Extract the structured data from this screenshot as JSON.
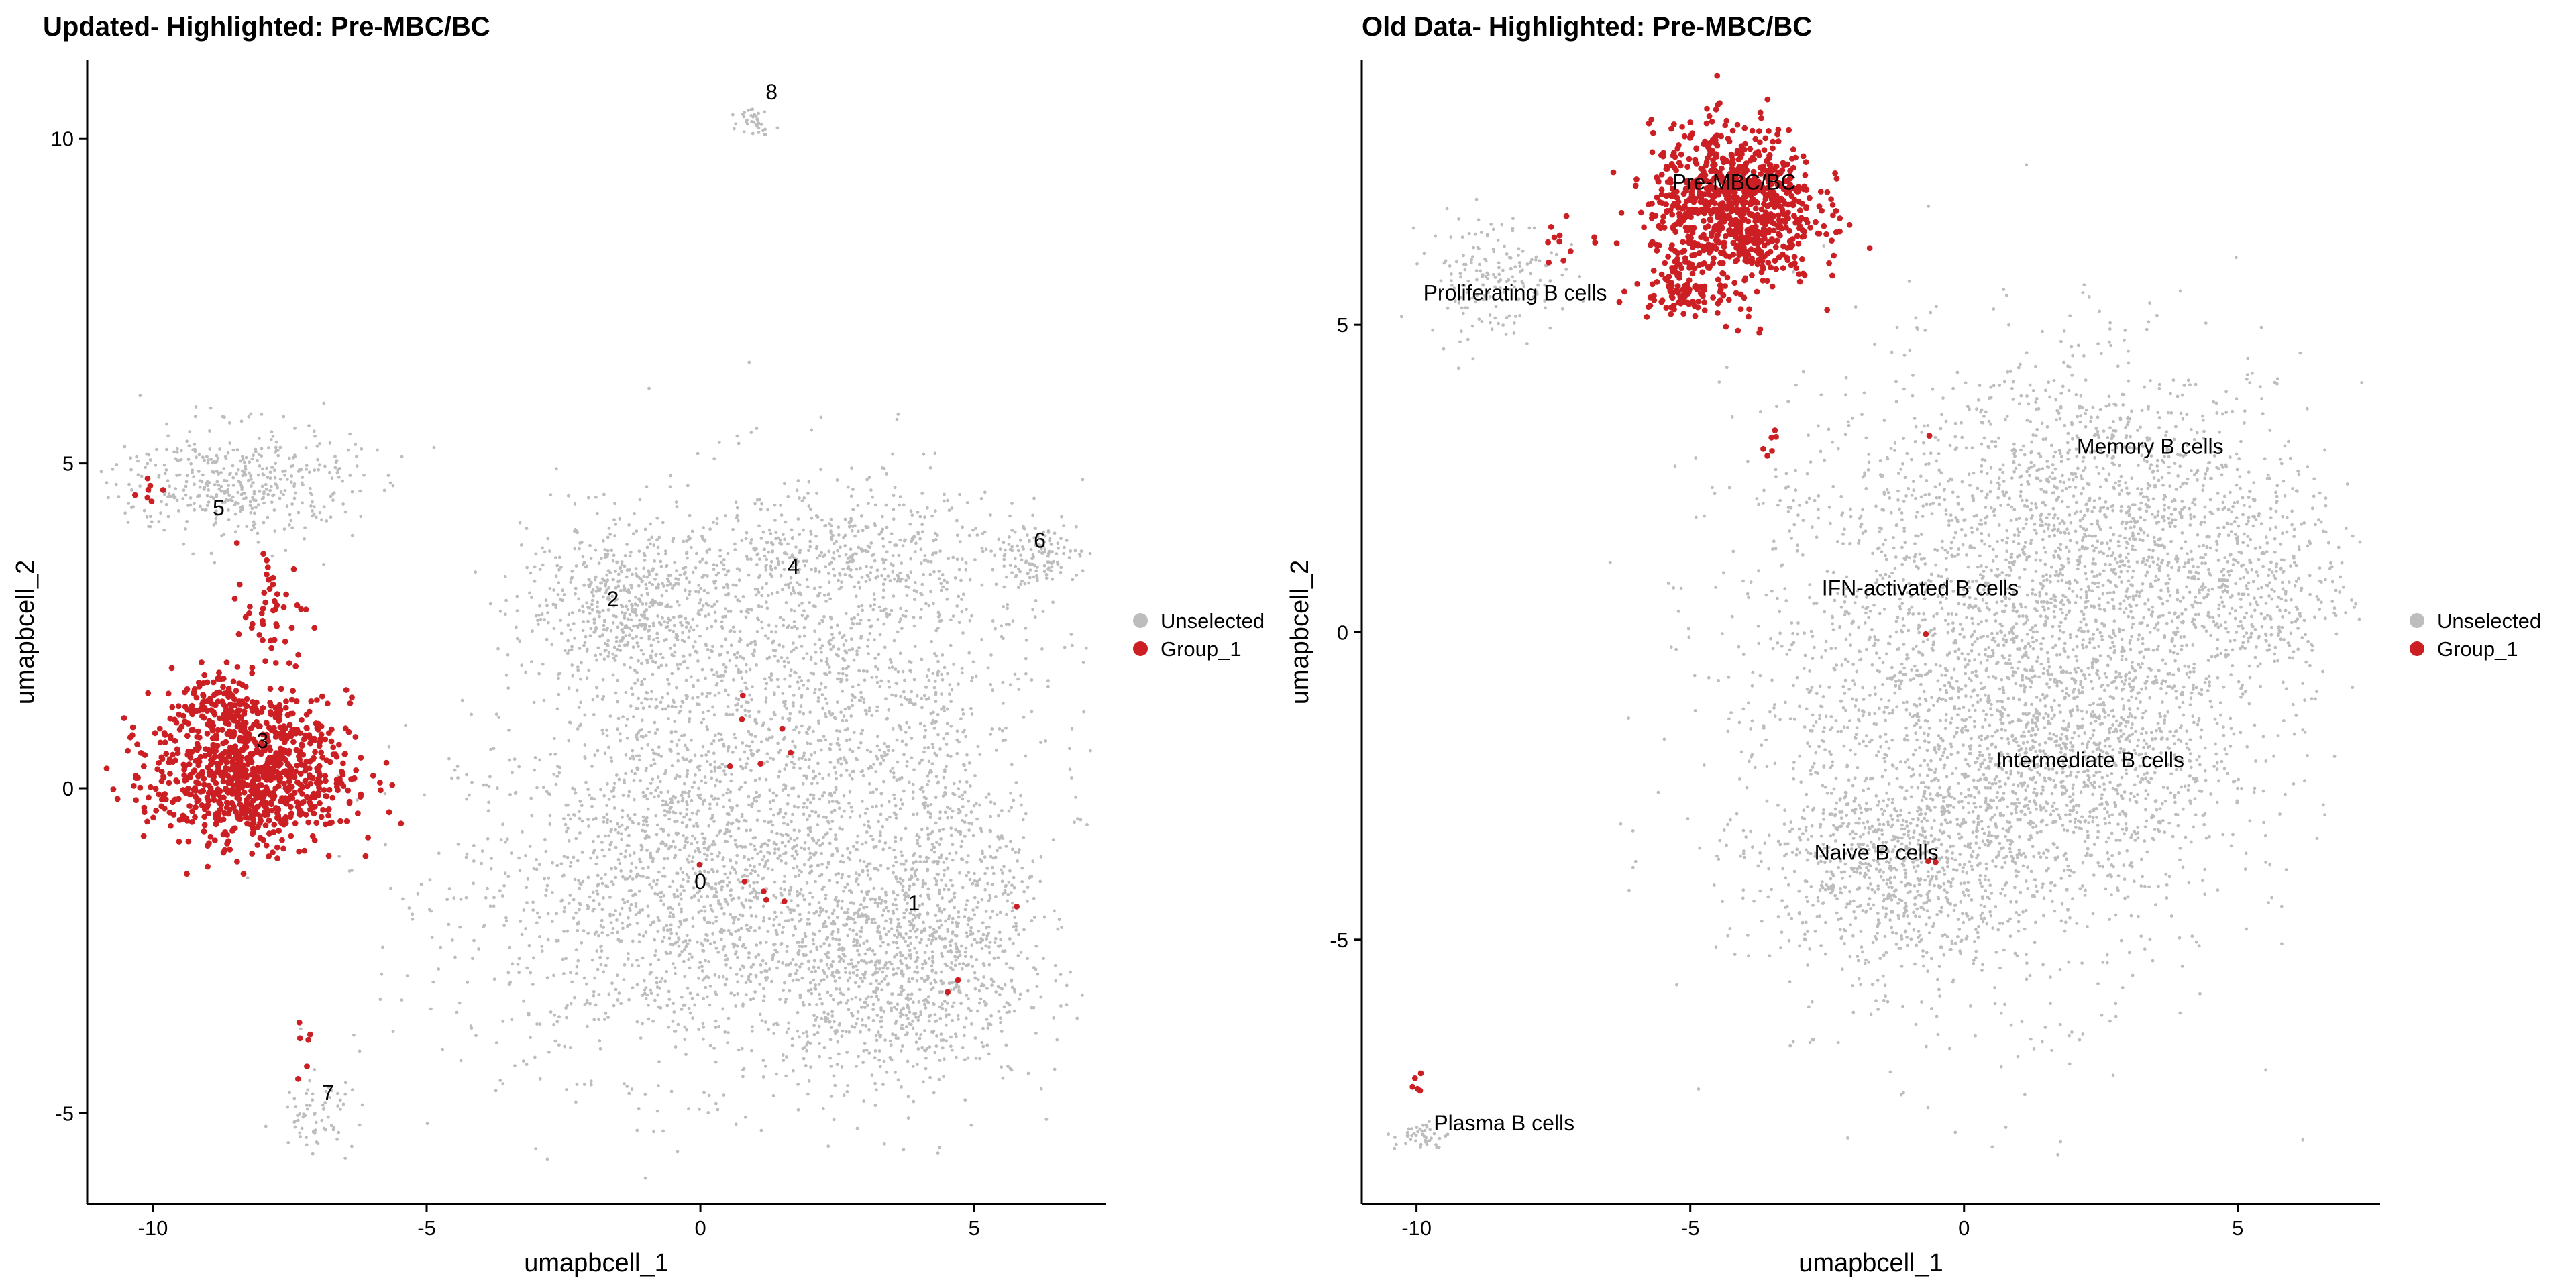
{
  "chart_data": [
    {
      "type": "scatter",
      "title": "Updated- Highlighted: Pre-MBC/BC",
      "xlabel": "umapbcell_1",
      "ylabel": "umapbcell_2",
      "xlim": [
        -11.2,
        7.4
      ],
      "ylim": [
        -6.4,
        11.2
      ],
      "x_ticks": [
        -10,
        -5,
        0,
        5
      ],
      "x_tick_labels": [
        "-10",
        "-5",
        "0",
        "5"
      ],
      "y_ticks": [
        -5,
        0,
        5,
        10
      ],
      "y_tick_labels": [
        "-5",
        "0",
        "5",
        "10"
      ],
      "grid": false,
      "legend_position": "right",
      "colors": {
        "Unselected": "#bdbdbd",
        "Group_1": "#cc1f24"
      },
      "series": [
        {
          "name": "Unselected",
          "color": "#bdbdbd"
        },
        {
          "name": "Group_1",
          "color": "#cc1f24"
        }
      ],
      "cluster_labels": [
        {
          "text": "0",
          "x": 0.0,
          "y": -1.55
        },
        {
          "text": "1",
          "x": 3.9,
          "y": -1.88
        },
        {
          "text": "2",
          "x": -1.6,
          "y": 2.8
        },
        {
          "text": "3",
          "x": -8.0,
          "y": 0.62
        },
        {
          "text": "4",
          "x": 1.7,
          "y": 3.3
        },
        {
          "text": "5",
          "x": -8.8,
          "y": 4.2
        },
        {
          "text": "6",
          "x": 6.2,
          "y": 3.7
        },
        {
          "text": "7",
          "x": -6.8,
          "y": -4.8
        },
        {
          "text": "8",
          "x": 1.3,
          "y": 10.6
        }
      ]
    },
    {
      "type": "scatter",
      "title": "Old Data- Highlighted: Pre-MBC/BC",
      "xlabel": "umapbcell_1",
      "ylabel": "umapbcell_2",
      "xlim": [
        -11.0,
        7.6
      ],
      "ylim": [
        -9.3,
        9.3
      ],
      "x_ticks": [
        -10,
        -5,
        0,
        5
      ],
      "x_tick_labels": [
        "-10",
        "-5",
        "0",
        "5"
      ],
      "y_ticks": [
        -5,
        0,
        5
      ],
      "y_tick_labels": [
        "-5",
        "0",
        "5"
      ],
      "grid": false,
      "legend_position": "right",
      "colors": {
        "Unselected": "#bdbdbd",
        "Group_1": "#cc1f24"
      },
      "series": [
        {
          "name": "Unselected",
          "color": "#bdbdbd"
        },
        {
          "name": "Group_1",
          "color": "#cc1f24"
        }
      ],
      "cluster_labels": [
        {
          "text": "Pre-MBC/BC",
          "x": -4.2,
          "y": 7.2
        },
        {
          "text": "Proliferating B cells",
          "x": -8.2,
          "y": 5.4
        },
        {
          "text": "Memory B cells",
          "x": 3.4,
          "y": 2.9
        },
        {
          "text": "IFN-activated B cells",
          "x": -0.8,
          "y": 0.6
        },
        {
          "text": "Intermediate B cells",
          "x": 2.3,
          "y": -2.2
        },
        {
          "text": "Naive B cells",
          "x": -1.6,
          "y": -3.7
        },
        {
          "text": "Plasma B cells",
          "x": -8.4,
          "y": -8.1
        }
      ]
    }
  ]
}
